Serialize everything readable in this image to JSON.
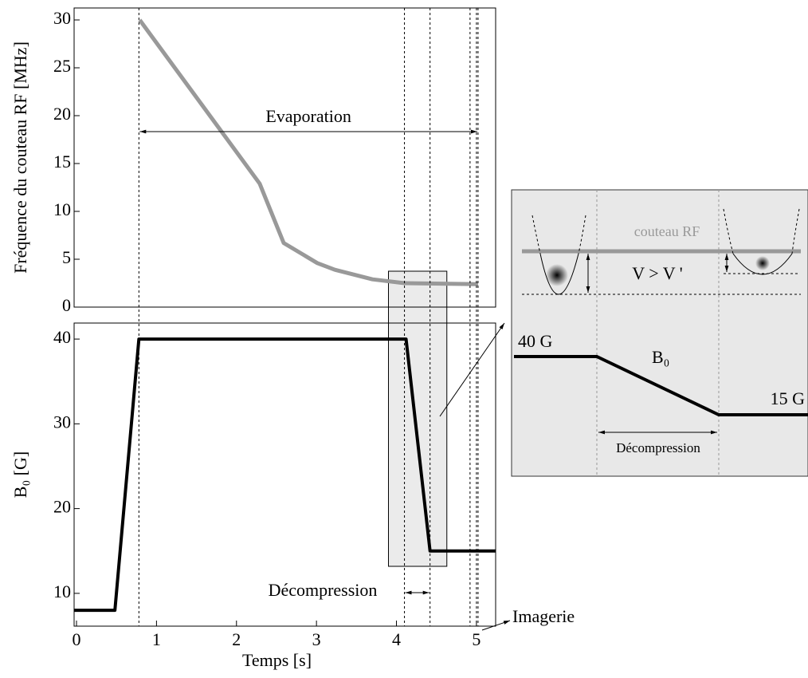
{
  "chart_data": [
    {
      "type": "line",
      "ylabel": "Fréquence du couteau RF [MHz]",
      "xlim": [
        -0.03,
        5.24
      ],
      "ylim": [
        0,
        31.25
      ],
      "yticks": [
        0,
        5,
        10,
        15,
        20,
        25,
        30
      ],
      "series": [
        {
          "color": "#999999",
          "x": [
            0.79,
            2.29,
            2.59,
            3.01,
            3.23,
            3.7,
            4.1,
            5.02
          ],
          "values": [
            30,
            12.9,
            6.7,
            4.6,
            3.9,
            2.9,
            2.5,
            2.4
          ]
        }
      ],
      "vlines": [
        0.78,
        4.1,
        4.42,
        4.92,
        5.0,
        5.02
      ],
      "annotation": "Evaporation"
    },
    {
      "type": "line",
      "xlabel": "Temps [s]",
      "ylabel": "B₀ [G]",
      "xlim": [
        -0.03,
        5.24
      ],
      "ylim": [
        6.13,
        41.89
      ],
      "xticks": [
        0,
        1,
        2,
        3,
        4,
        5
      ],
      "yticks": [
        10,
        20,
        30,
        40
      ],
      "series": [
        {
          "color": "#000000",
          "x": [
            -0.03,
            0.48,
            0.78,
            4.12,
            4.42,
            5.24
          ],
          "values": [
            8,
            8,
            40,
            40,
            15,
            15
          ]
        }
      ],
      "highlight": [
        3.9,
        4.63
      ],
      "annotations": [
        "Décompression",
        "Imagerie"
      ]
    }
  ],
  "inset": {
    "knife": "couteau RF",
    "inequality": "V > V '",
    "start": "40 G",
    "field": "B₀",
    "end": "15 G",
    "phase": "Décompression"
  }
}
